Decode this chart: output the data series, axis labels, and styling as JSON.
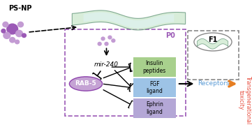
{
  "ps_np_label": "PS-NP",
  "p0_label": "P0",
  "f1_label": "F1",
  "mir240_label": "mir-240",
  "rab5_label": "RAB-5",
  "receptors_label": "Receptors",
  "trans_label": "Transgenerational\ntoxicity",
  "box1_label": "Insulin\npeptides",
  "box2_label": "FGF\nligand",
  "box3_label": "Ephrin\nligand",
  "box1_color": "#a8d08d",
  "box2_color": "#9dc3e6",
  "box3_color": "#b4a7d6",
  "rab5_color": "#c5a3d4",
  "background_color": "#ffffff",
  "p0_border_color": "#9b59b6",
  "ps_np_dot_colors": [
    "#9b59b6",
    "#c39bd3",
    "#7d3c98"
  ],
  "arrow_color_orange": "#e67e22",
  "arrow_color_black": "#000000",
  "trans_color": "#e74c3c"
}
